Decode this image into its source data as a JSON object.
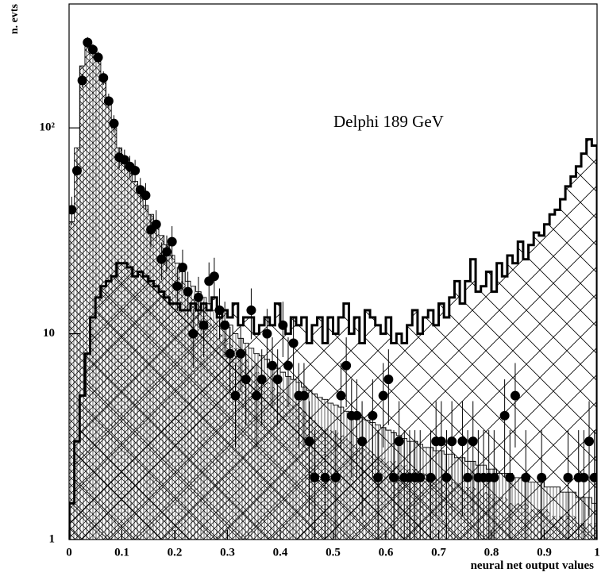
{
  "chart_data": {
    "type": "histogram",
    "annotation": "Delphi  189 GeV",
    "x_label": "neural net output values",
    "y_label": "n. evts",
    "log_y": true,
    "xlim": [
      0,
      1
    ],
    "ylim": [
      1,
      400
    ],
    "xticks": [
      0,
      0.1,
      0.2,
      0.3,
      0.4,
      0.5,
      0.6,
      0.7,
      0.8,
      0.9,
      1
    ],
    "yticks": [
      1,
      10,
      {
        "value": 100,
        "label": "10²"
      }
    ],
    "bins": [
      0,
      0.01,
      0.02,
      0.03,
      0.04,
      0.05,
      0.06,
      0.07,
      0.08,
      0.09,
      0.1,
      0.11,
      0.12,
      0.13,
      0.14,
      0.15,
      0.16,
      0.17,
      0.18,
      0.19,
      0.2,
      0.21,
      0.22,
      0.23,
      0.24,
      0.25,
      0.26,
      0.27,
      0.28,
      0.29,
      0.3,
      0.31,
      0.32,
      0.33,
      0.34,
      0.35,
      0.36,
      0.37,
      0.38,
      0.39,
      0.4,
      0.41,
      0.42,
      0.43,
      0.44,
      0.45,
      0.46,
      0.47,
      0.48,
      0.49,
      0.5,
      0.51,
      0.52,
      0.53,
      0.54,
      0.55,
      0.56,
      0.57,
      0.58,
      0.59,
      0.6,
      0.61,
      0.62,
      0.63,
      0.64,
      0.65,
      0.66,
      0.67,
      0.68,
      0.69,
      0.7,
      0.71,
      0.72,
      0.73,
      0.74,
      0.75,
      0.76,
      0.77,
      0.78,
      0.79,
      0.8,
      0.81,
      0.82,
      0.83,
      0.84,
      0.85,
      0.86,
      0.87,
      0.88,
      0.89,
      0.9,
      0.91,
      0.92,
      0.93,
      0.94,
      0.95,
      0.96,
      0.97,
      0.98,
      0.99,
      1
    ],
    "series": [
      {
        "color": "#000000",
        "fill": "large-crosshatch",
        "outline": "thick",
        "values": [
          1.5,
          3,
          5,
          8,
          12,
          15,
          17,
          18,
          19,
          22,
          22,
          21,
          19,
          20,
          19,
          18,
          17,
          16,
          15,
          14,
          14,
          13,
          13,
          14,
          13,
          14,
          13,
          15,
          12,
          13,
          12,
          14,
          11,
          12,
          12,
          10,
          11,
          12,
          11,
          14,
          11,
          10,
          12,
          11,
          12,
          9,
          11,
          12,
          9,
          12,
          10,
          12,
          14,
          10,
          12,
          9,
          13,
          12,
          11,
          10,
          12,
          9,
          10,
          9,
          11,
          13,
          10,
          12,
          13,
          11,
          14,
          12,
          15,
          18,
          14,
          18,
          23,
          16,
          17,
          20,
          16,
          22,
          19,
          24,
          22,
          28,
          23,
          27,
          31,
          30,
          34,
          38,
          40,
          45,
          52,
          58,
          65,
          75,
          88,
          82
        ]
      },
      {
        "color": "#000000",
        "fill": "vertical-hatch",
        "outline": "thin",
        "values": [
          35,
          80,
          200,
          250,
          240,
          210,
          170,
          130,
          100,
          80,
          70,
          62,
          55,
          48,
          42,
          38,
          34,
          30,
          27,
          24,
          22,
          20,
          18,
          17,
          16,
          15,
          14,
          13,
          12,
          11.5,
          11,
          10,
          9.5,
          9,
          8.5,
          8,
          7.8,
          7.5,
          7,
          6.8,
          6.5,
          6.2,
          6,
          5.8,
          5.5,
          5.3,
          5.1,
          4.9,
          4.8,
          4.6,
          4.5,
          4.4,
          4.2,
          4.1,
          4,
          3.9,
          3.8,
          3.7,
          3.6,
          3.5,
          3.4,
          3.3,
          3.2,
          3.1,
          3,
          3,
          2.9,
          2.8,
          2.8,
          2.7,
          2.7,
          2.6,
          2.6,
          2.5,
          2.5,
          2.4,
          2.4,
          2.3,
          2.3,
          2.2,
          2.2,
          2.1,
          2.1,
          2.1,
          2,
          2,
          2,
          1.9,
          1.9,
          1.9,
          1.8,
          1.8,
          1.8,
          1.7,
          1.7,
          1.7,
          1.6,
          1.6,
          1.6,
          1.5
        ]
      },
      {
        "color": "#000000",
        "fill": "small-crosshatch",
        "outline": "none",
        "values": [
          35,
          80,
          200,
          250,
          240,
          210,
          170,
          130,
          100,
          80,
          70,
          62,
          55,
          48,
          42,
          38,
          34,
          30,
          27,
          24,
          20,
          18,
          16,
          15,
          14,
          13,
          12,
          11,
          10,
          9.5,
          9,
          8.5,
          8,
          7.5,
          7,
          6.5,
          6,
          5.8,
          5.5,
          5.2,
          5,
          4.8,
          4.6,
          4.4,
          4.2,
          4,
          3.8,
          3.6,
          3.5,
          3.4,
          3.3,
          3.2,
          3.1,
          3,
          2.9,
          2.8,
          2.7,
          2.6,
          2.5,
          2.5,
          2.4,
          2.4,
          2.3,
          2.3,
          2.2,
          2.2,
          2.1,
          2.1,
          2,
          2,
          2,
          1.9,
          1.9,
          1.9,
          1.8,
          1.8,
          1.8,
          1.7,
          1.7,
          1.7,
          1.6,
          1.6,
          1.6,
          1.5,
          1.5,
          1.5,
          1.5,
          1.4,
          1.4,
          1.4,
          1.4,
          1.3,
          1.3,
          1.3,
          1.3,
          1.3,
          1.2,
          1.2,
          1.2,
          1.2
        ]
      }
    ],
    "points": {
      "color": "#000000",
      "x": [
        0.005,
        0.015,
        0.025,
        0.035,
        0.045,
        0.055,
        0.065,
        0.075,
        0.085,
        0.095,
        0.105,
        0.115,
        0.125,
        0.135,
        0.145,
        0.155,
        0.165,
        0.175,
        0.185,
        0.195,
        0.205,
        0.215,
        0.225,
        0.235,
        0.245,
        0.255,
        0.265,
        0.275,
        0.285,
        0.295,
        0.305,
        0.315,
        0.325,
        0.335,
        0.345,
        0.355,
        0.365,
        0.375,
        0.385,
        0.395,
        0.405,
        0.415,
        0.425,
        0.435,
        0.445,
        0.455,
        0.465,
        0.485,
        0.505,
        0.515,
        0.525,
        0.535,
        0.545,
        0.555,
        0.575,
        0.585,
        0.595,
        0.605,
        0.615,
        0.625,
        0.635,
        0.645,
        0.655,
        0.665,
        0.685,
        0.695,
        0.705,
        0.715,
        0.725,
        0.745,
        0.755,
        0.765,
        0.775,
        0.785,
        0.795,
        0.805,
        0.825,
        0.835,
        0.845,
        0.865,
        0.895,
        0.945,
        0.965,
        0.975,
        0.985,
        0.995
      ],
      "values": [
        40,
        62,
        170,
        260,
        240,
        220,
        175,
        135,
        105,
        72,
        70,
        65,
        62,
        50,
        47,
        32,
        34,
        23,
        25,
        28,
        17,
        21,
        16,
        10,
        15,
        11,
        18,
        19,
        13,
        11,
        8,
        5,
        8,
        6,
        13,
        5,
        6,
        10,
        7,
        6,
        11,
        7,
        9,
        5,
        5,
        3,
        2,
        2,
        2,
        5,
        7,
        4,
        4,
        3,
        4,
        2,
        5,
        6,
        2,
        3,
        2,
        2,
        2,
        2,
        2,
        3,
        3,
        2,
        3,
        3,
        2,
        3,
        2,
        2,
        2,
        2,
        4,
        2,
        5,
        2,
        2,
        2,
        2,
        2,
        3,
        2
      ],
      "errors": [
        6.3,
        7.9,
        13,
        16.1,
        15.5,
        14.8,
        13.2,
        11.6,
        10.2,
        8.5,
        8.4,
        8.1,
        7.9,
        7.1,
        6.9,
        5.7,
        5.8,
        4.8,
        5,
        5.3,
        4.1,
        4.6,
        4,
        3.2,
        3.9,
        3.3,
        4.2,
        4.4,
        3.6,
        3.3,
        2.8,
        2.2,
        2.8,
        2.4,
        3.6,
        2.2,
        2.4,
        3.2,
        2.6,
        2.4,
        3.3,
        2.6,
        3,
        2.2,
        2.2,
        1.7,
        1.4,
        1.4,
        1.4,
        2.2,
        2.6,
        2,
        2,
        1.7,
        2,
        1.4,
        2.2,
        2.4,
        1.4,
        1.7,
        1.4,
        1.4,
        1.4,
        1.4,
        1.4,
        1.7,
        1.7,
        1.4,
        1.7,
        1.7,
        1.4,
        1.7,
        1.4,
        1.4,
        1.4,
        1.4,
        2,
        1.4,
        2.2,
        1.4,
        1.4,
        1.4,
        1.4,
        1.4,
        1.7,
        1.4
      ]
    }
  }
}
